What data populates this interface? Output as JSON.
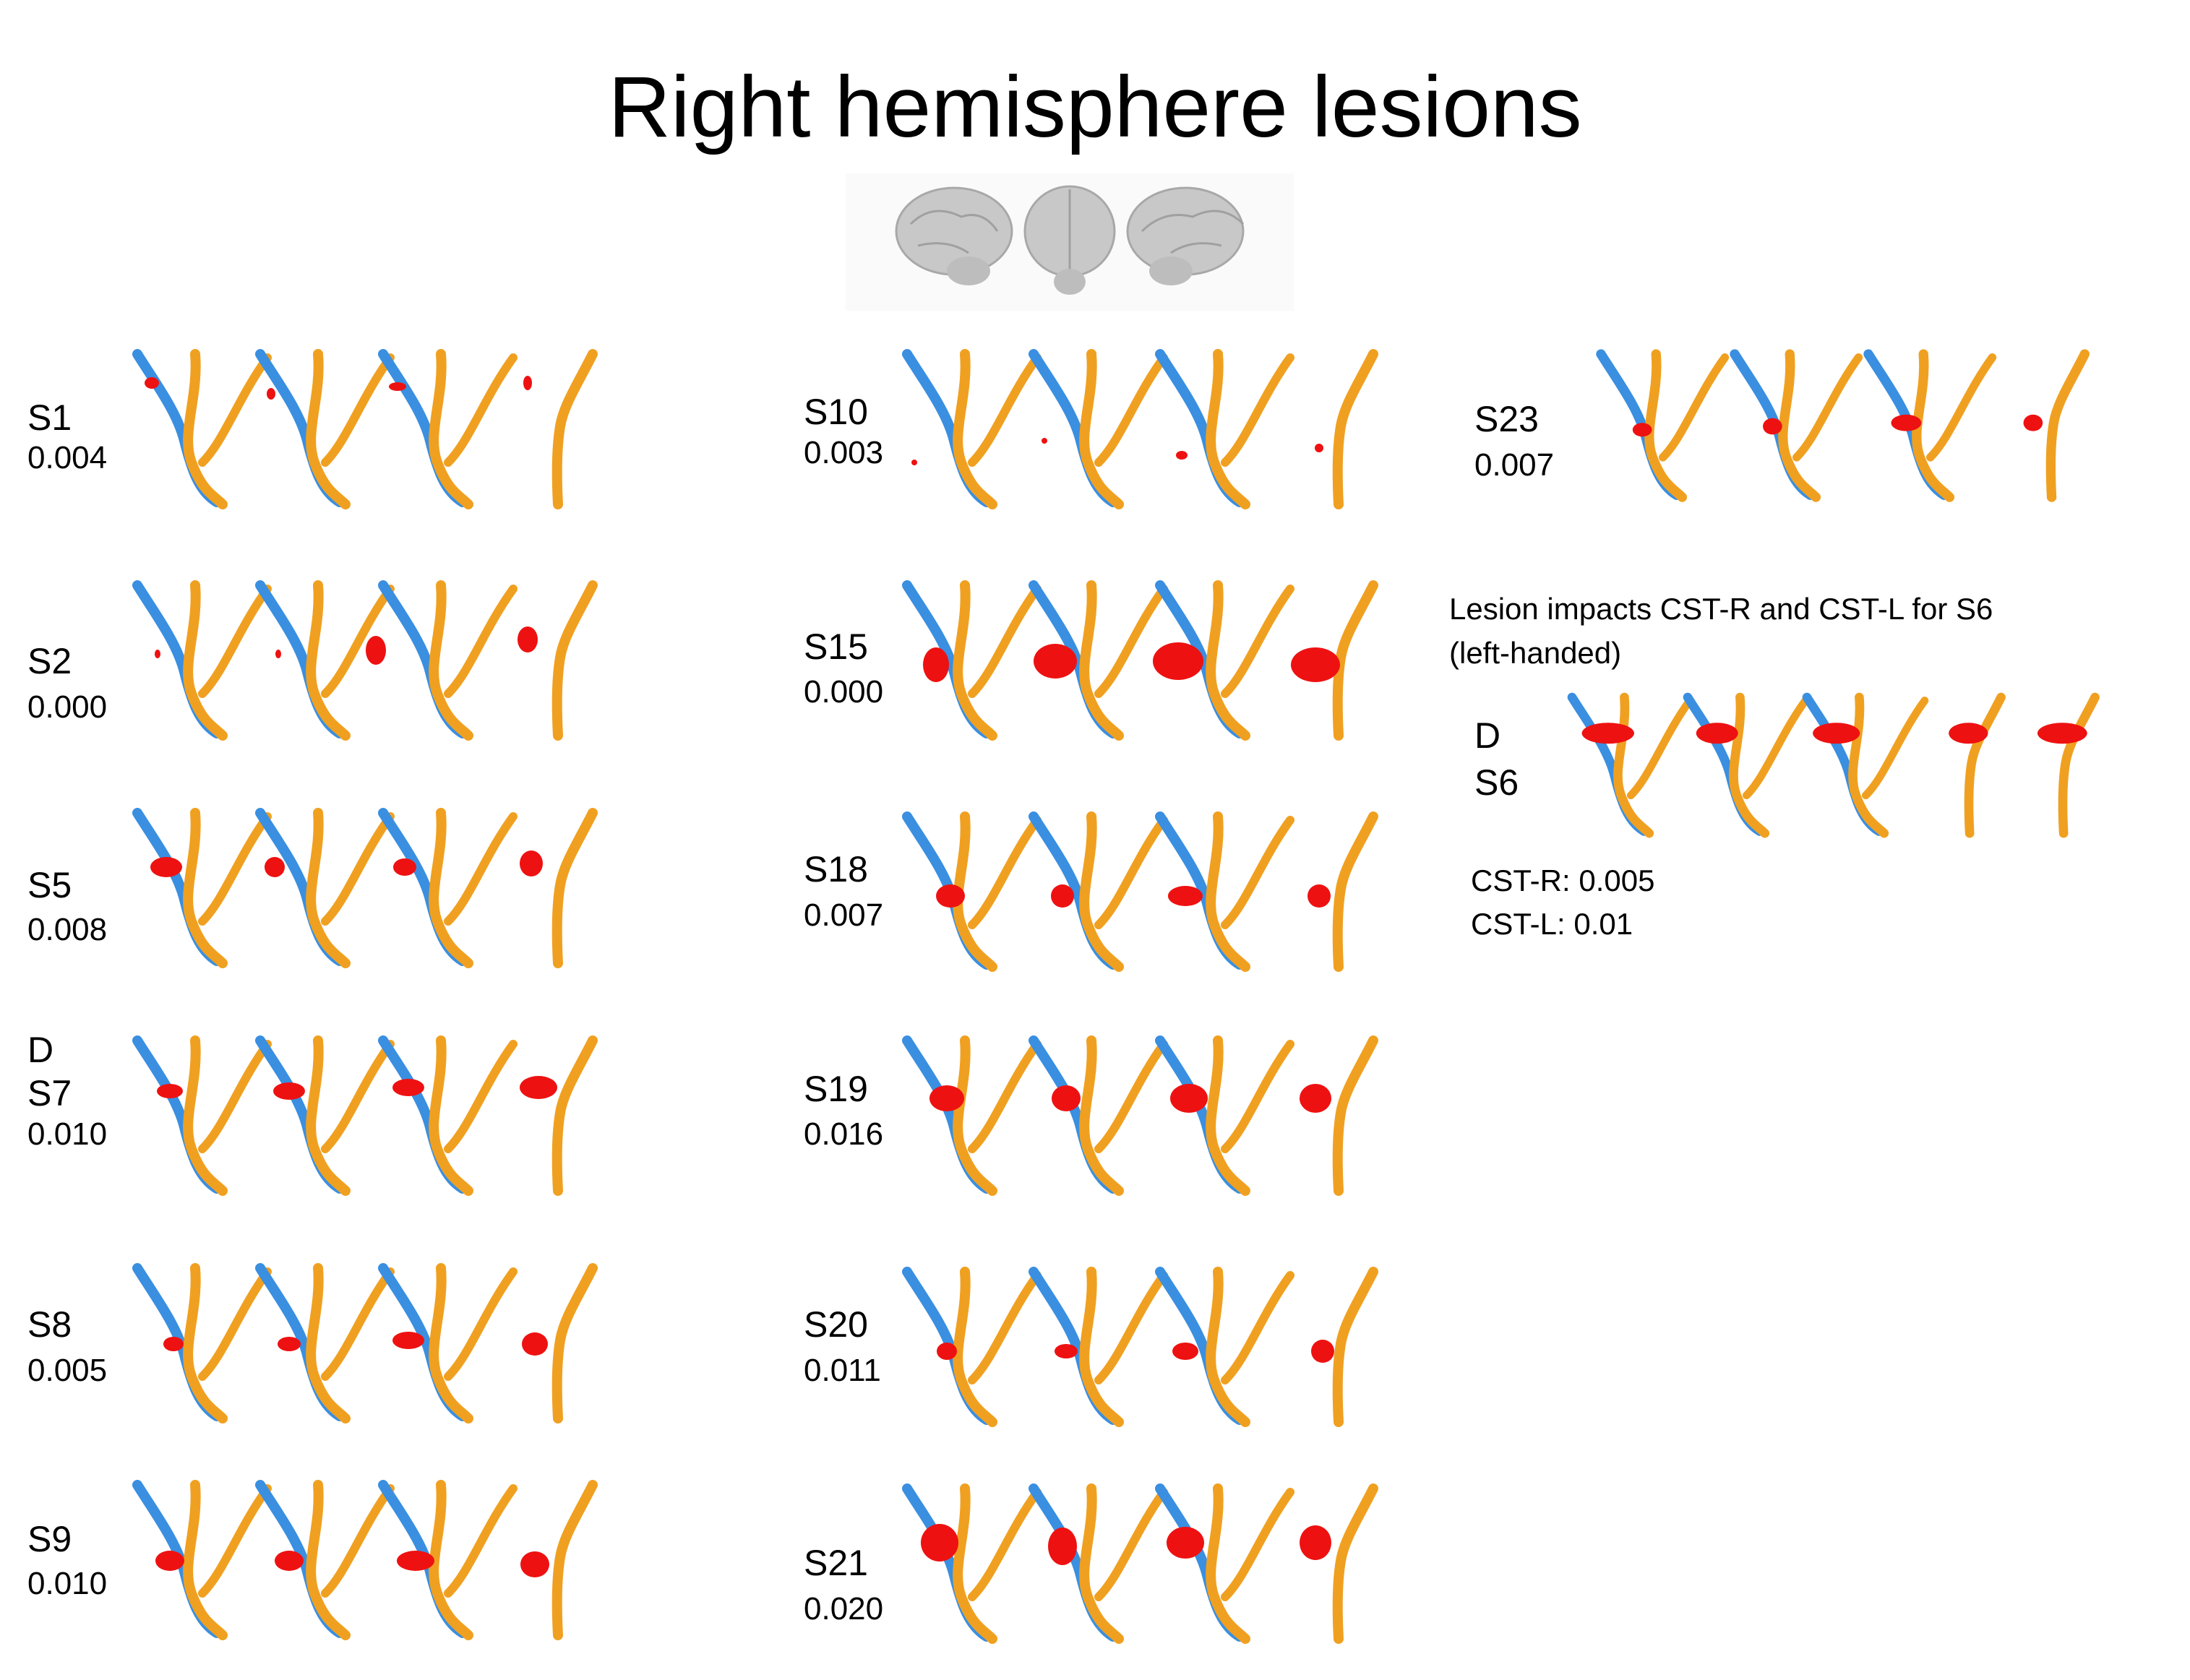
{
  "title": "Right hemisphere lesions",
  "brain_icons": [
    "brain-lateral-left-icon",
    "brain-front-icon",
    "brain-lateral-right-icon"
  ],
  "colors": {
    "tract_blue": "#3a8fe0",
    "tract_orange": "#f0a020",
    "lesion": "#ee1111"
  },
  "subjects": [
    {
      "flag": "",
      "label": "S1",
      "value": "0.004"
    },
    {
      "flag": "",
      "label": "S2",
      "value": "0.000"
    },
    {
      "flag": "",
      "label": "S5",
      "value": "0.008"
    },
    {
      "flag": "D",
      "label": "S7",
      "value": "0.010"
    },
    {
      "flag": "",
      "label": "S8",
      "value": "0.005"
    },
    {
      "flag": "",
      "label": "S9",
      "value": "0.010"
    },
    {
      "flag": "",
      "label": "S10",
      "value": "0.003"
    },
    {
      "flag": "",
      "label": "S15",
      "value": "0.000"
    },
    {
      "flag": "",
      "label": "S18",
      "value": "0.007"
    },
    {
      "flag": "",
      "label": "S19",
      "value": "0.016"
    },
    {
      "flag": "",
      "label": "S20",
      "value": "0.011"
    },
    {
      "flag": "",
      "label": "S21",
      "value": "0.020"
    },
    {
      "flag": "",
      "label": "S23",
      "value": "0.007"
    }
  ],
  "s6_panel": {
    "note_line1": "Lesion impacts CST-R and CST-L for S6",
    "note_line2": "(left-handed)",
    "flag": "D",
    "label": "S6",
    "cst_r": "CST-R: 0.005",
    "cst_l": "CST-L: 0.01"
  }
}
